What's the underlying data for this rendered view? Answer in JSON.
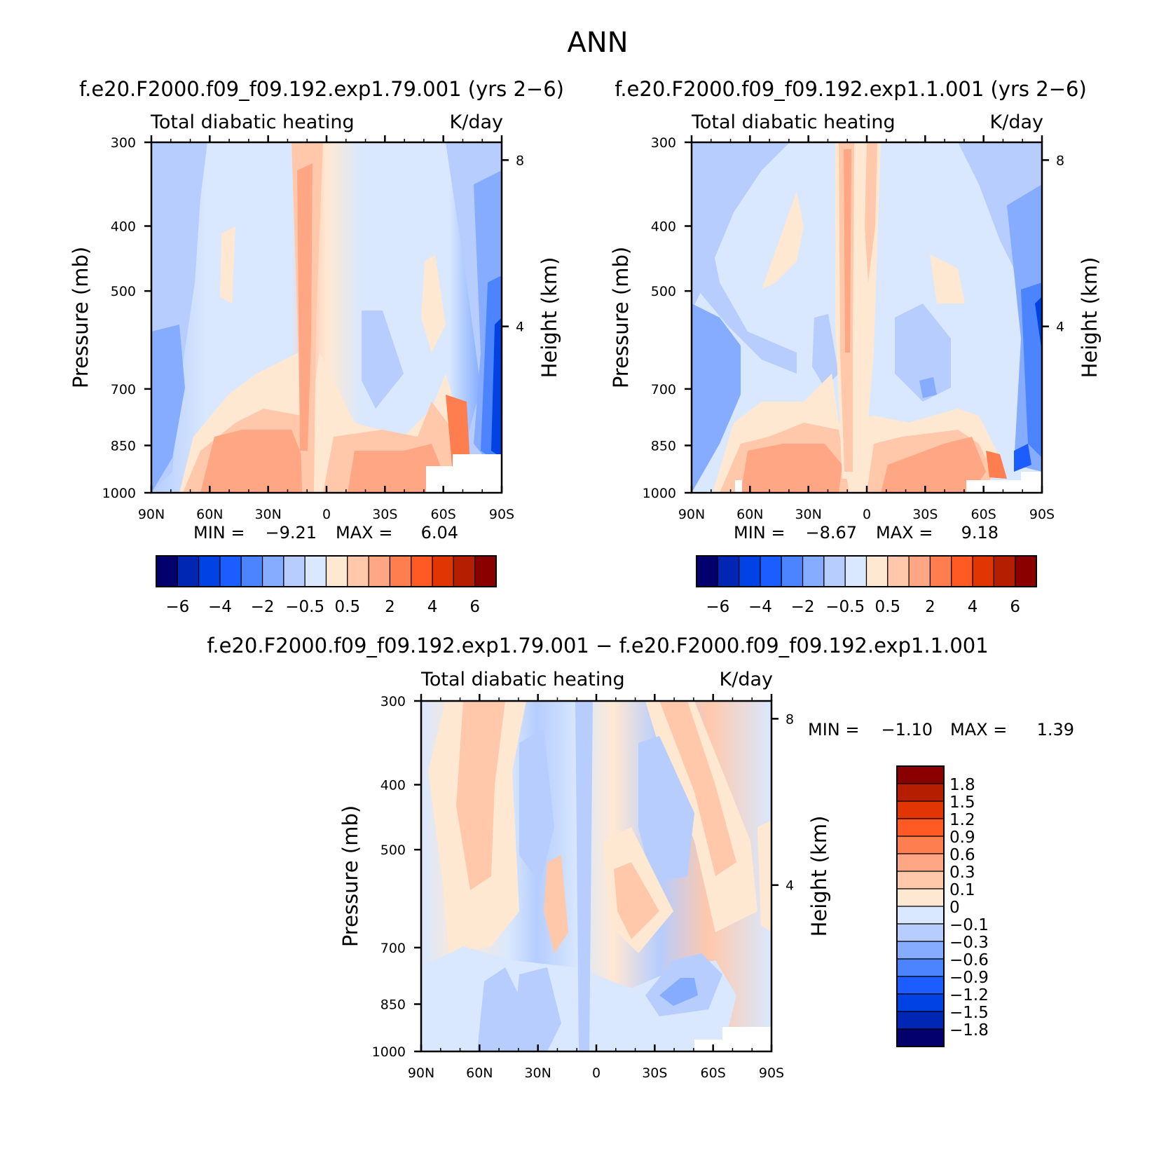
{
  "figure": {
    "title": "ANN"
  },
  "chart_data": [
    {
      "type": "heatmap",
      "id": "p1",
      "title": "f.e20.F2000.f09_f09.192.exp1.79.001 (yrs 2−6)",
      "left_label": "Total diabatic heating",
      "right_label": "K/day",
      "xlabel": "",
      "ylabel": "Pressure (mb)",
      "y2label": "Height (km)",
      "x_ticks": [
        "90N",
        "60N",
        "30N",
        "0",
        "30S",
        "60S",
        "90S"
      ],
      "y_ticks": [
        "300",
        "400",
        "500",
        "700",
        "850",
        "1000"
      ],
      "y2_ticks": [
        "8",
        "4"
      ],
      "stats": {
        "min_label": "MIN =",
        "min": "−9.21",
        "max_label": "MAX =",
        "max": "6.04"
      },
      "colorbar": {
        "orientation": "horizontal",
        "colors": [
          "#03006d",
          "#0026b4",
          "#0042e4",
          "#1b5dff",
          "#4c84ff",
          "#85acfe",
          "#b6cdfe",
          "#d9e8fe",
          "#ffe8d2",
          "#ffc8ab",
          "#ffa784",
          "#ff7e4f",
          "#ff5a23",
          "#e23504",
          "#b51e00",
          "#8a0000"
        ],
        "labels": [
          "−6",
          "−4",
          "−2",
          "−0.5",
          "0.5",
          "2",
          "4",
          "6"
        ]
      }
    },
    {
      "type": "heatmap",
      "id": "p2",
      "title": "f.e20.F2000.f09_f09.192.exp1.1.001 (yrs 2−6)",
      "left_label": "Total diabatic heating",
      "right_label": "K/day",
      "xlabel": "",
      "ylabel": "Pressure (mb)",
      "y2label": "Height (km)",
      "x_ticks": [
        "90N",
        "60N",
        "30N",
        "0",
        "30S",
        "60S",
        "90S"
      ],
      "y_ticks": [
        "300",
        "400",
        "500",
        "700",
        "850",
        "1000"
      ],
      "y2_ticks": [
        "8",
        "4"
      ],
      "stats": {
        "min_label": "MIN =",
        "min": "−8.67",
        "max_label": "MAX =",
        "max": "9.18"
      },
      "colorbar": {
        "orientation": "horizontal",
        "colors": [
          "#03006d",
          "#0026b4",
          "#0042e4",
          "#1b5dff",
          "#4c84ff",
          "#85acfe",
          "#b6cdfe",
          "#d9e8fe",
          "#ffe8d2",
          "#ffc8ab",
          "#ffa784",
          "#ff7e4f",
          "#ff5a23",
          "#e23504",
          "#b51e00",
          "#8a0000"
        ],
        "labels": [
          "−6",
          "−4",
          "−2",
          "−0.5",
          "0.5",
          "2",
          "4",
          "6"
        ]
      }
    },
    {
      "type": "heatmap",
      "id": "p3",
      "title": "f.e20.F2000.f09_f09.192.exp1.79.001 − f.e20.F2000.f09_f09.192.exp1.1.001",
      "left_label": "Total diabatic heating",
      "right_label": "K/day",
      "xlabel": "",
      "ylabel": "Pressure (mb)",
      "y2label": "Height (km)",
      "x_ticks": [
        "90N",
        "60N",
        "30N",
        "0",
        "30S",
        "60S",
        "90S"
      ],
      "y_ticks": [
        "300",
        "400",
        "500",
        "700",
        "850",
        "1000"
      ],
      "y2_ticks": [
        "8",
        "4"
      ],
      "stats": {
        "min_label": "MIN =",
        "min": "−1.10",
        "max_label": "MAX =",
        "max": "1.39"
      },
      "colorbar": {
        "orientation": "vertical",
        "colors": [
          "#8a0000",
          "#b51e00",
          "#e23504",
          "#ff5a23",
          "#ff7e4f",
          "#ffa784",
          "#ffc8ab",
          "#ffe8d2",
          "#d9e8fe",
          "#b6cdfe",
          "#85acfe",
          "#4c84ff",
          "#1b5dff",
          "#0042e4",
          "#0026b4",
          "#03006d"
        ],
        "labels": [
          "1.8",
          "1.5",
          "1.2",
          "0.9",
          "0.6",
          "0.3",
          "0.1",
          "0",
          "−0.1",
          "−0.3",
          "−0.6",
          "−0.9",
          "−1.2",
          "−1.5",
          "−1.8"
        ]
      }
    }
  ]
}
